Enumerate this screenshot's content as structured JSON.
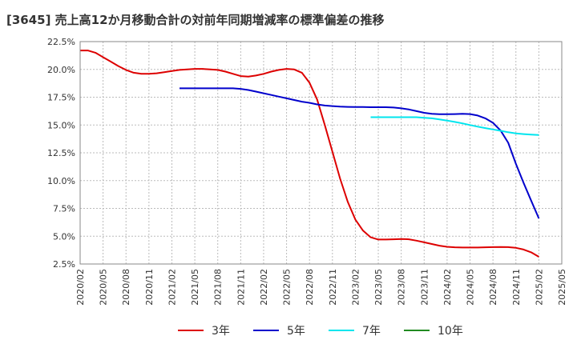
{
  "chart_data": {
    "type": "line",
    "title": "[3645]  売上高12か月移動合計の対前年同期増減率の標準偏差の推移",
    "xlabel": "",
    "ylabel": "",
    "x_ticks": [
      "2020/02",
      "2020/05",
      "2020/08",
      "2020/11",
      "2021/02",
      "2021/05",
      "2021/08",
      "2021/11",
      "2022/02",
      "2022/05",
      "2022/08",
      "2022/11",
      "2023/02",
      "2023/05",
      "2023/08",
      "2023/11",
      "2024/02",
      "2024/05",
      "2024/08",
      "2024/11",
      "2025/02",
      "2025/05"
    ],
    "y_ticks": [
      "2.5%",
      "5.0%",
      "7.5%",
      "10.0%",
      "12.5%",
      "15.0%",
      "17.5%",
      "20.0%",
      "22.5%"
    ],
    "ylim": [
      2.5,
      22.5
    ],
    "x_start": "2020/02",
    "x_end": "2025/05",
    "grid": true,
    "legend_position": "bottom",
    "series": [
      {
        "name": "3年",
        "color": "#dd0000",
        "points": [
          [
            "2020/02",
            21.7
          ],
          [
            "2020/03",
            21.7
          ],
          [
            "2020/04",
            21.5
          ],
          [
            "2020/05",
            21.1
          ],
          [
            "2020/06",
            20.7
          ],
          [
            "2020/07",
            20.3
          ],
          [
            "2020/08",
            19.95
          ],
          [
            "2020/09",
            19.7
          ],
          [
            "2020/10",
            19.6
          ],
          [
            "2020/11",
            19.6
          ],
          [
            "2020/12",
            19.65
          ],
          [
            "2021/01",
            19.75
          ],
          [
            "2021/02",
            19.85
          ],
          [
            "2021/03",
            19.95
          ],
          [
            "2021/04",
            20.0
          ],
          [
            "2021/05",
            20.05
          ],
          [
            "2021/06",
            20.05
          ],
          [
            "2021/07",
            20.0
          ],
          [
            "2021/08",
            19.95
          ],
          [
            "2021/09",
            19.8
          ],
          [
            "2021/10",
            19.6
          ],
          [
            "2021/11",
            19.4
          ],
          [
            "2021/12",
            19.35
          ],
          [
            "2022/01",
            19.45
          ],
          [
            "2022/02",
            19.6
          ],
          [
            "2022/03",
            19.8
          ],
          [
            "2022/04",
            19.95
          ],
          [
            "2022/05",
            20.05
          ],
          [
            "2022/06",
            20.0
          ],
          [
            "2022/07",
            19.7
          ],
          [
            "2022/08",
            18.8
          ],
          [
            "2022/09",
            17.3
          ],
          [
            "2022/10",
            15.0
          ],
          [
            "2022/11",
            12.6
          ],
          [
            "2022/12",
            10.2
          ],
          [
            "2023/01",
            8.1
          ],
          [
            "2023/02",
            6.5
          ],
          [
            "2023/03",
            5.5
          ],
          [
            "2023/04",
            4.9
          ],
          [
            "2023/05",
            4.7
          ],
          [
            "2023/06",
            4.7
          ],
          [
            "2023/07",
            4.72
          ],
          [
            "2023/08",
            4.75
          ],
          [
            "2023/09",
            4.72
          ],
          [
            "2023/10",
            4.6
          ],
          [
            "2023/11",
            4.45
          ],
          [
            "2023/12",
            4.3
          ],
          [
            "2024/01",
            4.15
          ],
          [
            "2024/02",
            4.05
          ],
          [
            "2024/03",
            4.0
          ],
          [
            "2024/04",
            3.98
          ],
          [
            "2024/05",
            3.98
          ],
          [
            "2024/06",
            3.98
          ],
          [
            "2024/07",
            4.0
          ],
          [
            "2024/08",
            4.02
          ],
          [
            "2024/09",
            4.03
          ],
          [
            "2024/10",
            4.02
          ],
          [
            "2024/11",
            3.95
          ],
          [
            "2024/12",
            3.8
          ],
          [
            "2025/01",
            3.55
          ],
          [
            "2025/02",
            3.15
          ]
        ]
      },
      {
        "name": "5年",
        "color": "#0000cc",
        "points": [
          [
            "2021/03",
            18.3
          ],
          [
            "2021/04",
            18.3
          ],
          [
            "2021/05",
            18.3
          ],
          [
            "2021/06",
            18.3
          ],
          [
            "2021/07",
            18.3
          ],
          [
            "2021/08",
            18.3
          ],
          [
            "2021/09",
            18.3
          ],
          [
            "2021/10",
            18.3
          ],
          [
            "2021/11",
            18.25
          ],
          [
            "2021/12",
            18.15
          ],
          [
            "2022/01",
            18.0
          ],
          [
            "2022/02",
            17.85
          ],
          [
            "2022/03",
            17.7
          ],
          [
            "2022/04",
            17.55
          ],
          [
            "2022/05",
            17.4
          ],
          [
            "2022/06",
            17.25
          ],
          [
            "2022/07",
            17.1
          ],
          [
            "2022/08",
            17.0
          ],
          [
            "2022/09",
            16.85
          ],
          [
            "2022/10",
            16.75
          ],
          [
            "2022/11",
            16.7
          ],
          [
            "2022/12",
            16.65
          ],
          [
            "2023/01",
            16.63
          ],
          [
            "2023/02",
            16.62
          ],
          [
            "2023/03",
            16.62
          ],
          [
            "2023/04",
            16.6
          ],
          [
            "2023/05",
            16.6
          ],
          [
            "2023/06",
            16.6
          ],
          [
            "2023/07",
            16.57
          ],
          [
            "2023/08",
            16.5
          ],
          [
            "2023/09",
            16.4
          ],
          [
            "2023/10",
            16.25
          ],
          [
            "2023/11",
            16.1
          ],
          [
            "2023/12",
            16.0
          ],
          [
            "2024/01",
            15.97
          ],
          [
            "2024/02",
            15.97
          ],
          [
            "2024/03",
            15.98
          ],
          [
            "2024/04",
            16.0
          ],
          [
            "2024/05",
            15.98
          ],
          [
            "2024/06",
            15.85
          ],
          [
            "2024/07",
            15.6
          ],
          [
            "2024/08",
            15.2
          ],
          [
            "2024/09",
            14.5
          ],
          [
            "2024/10",
            13.4
          ],
          [
            "2024/11",
            11.5
          ],
          [
            "2024/12",
            9.8
          ],
          [
            "2025/01",
            8.2
          ],
          [
            "2025/02",
            6.6
          ]
        ]
      },
      {
        "name": "7年",
        "color": "#00e5ee",
        "points": [
          [
            "2023/04",
            15.7
          ],
          [
            "2023/05",
            15.7
          ],
          [
            "2023/06",
            15.7
          ],
          [
            "2023/07",
            15.7
          ],
          [
            "2023/08",
            15.7
          ],
          [
            "2023/09",
            15.7
          ],
          [
            "2023/10",
            15.7
          ],
          [
            "2023/11",
            15.65
          ],
          [
            "2023/12",
            15.6
          ],
          [
            "2024/01",
            15.5
          ],
          [
            "2024/02",
            15.4
          ],
          [
            "2024/03",
            15.28
          ],
          [
            "2024/04",
            15.15
          ],
          [
            "2024/05",
            15.0
          ],
          [
            "2024/06",
            14.85
          ],
          [
            "2024/07",
            14.72
          ],
          [
            "2024/08",
            14.6
          ],
          [
            "2024/09",
            14.48
          ],
          [
            "2024/10",
            14.35
          ],
          [
            "2024/11",
            14.25
          ],
          [
            "2024/12",
            14.18
          ],
          [
            "2025/01",
            14.13
          ],
          [
            "2025/02",
            14.1
          ]
        ]
      },
      {
        "name": "10年",
        "color": "#228b22",
        "points": []
      }
    ]
  }
}
